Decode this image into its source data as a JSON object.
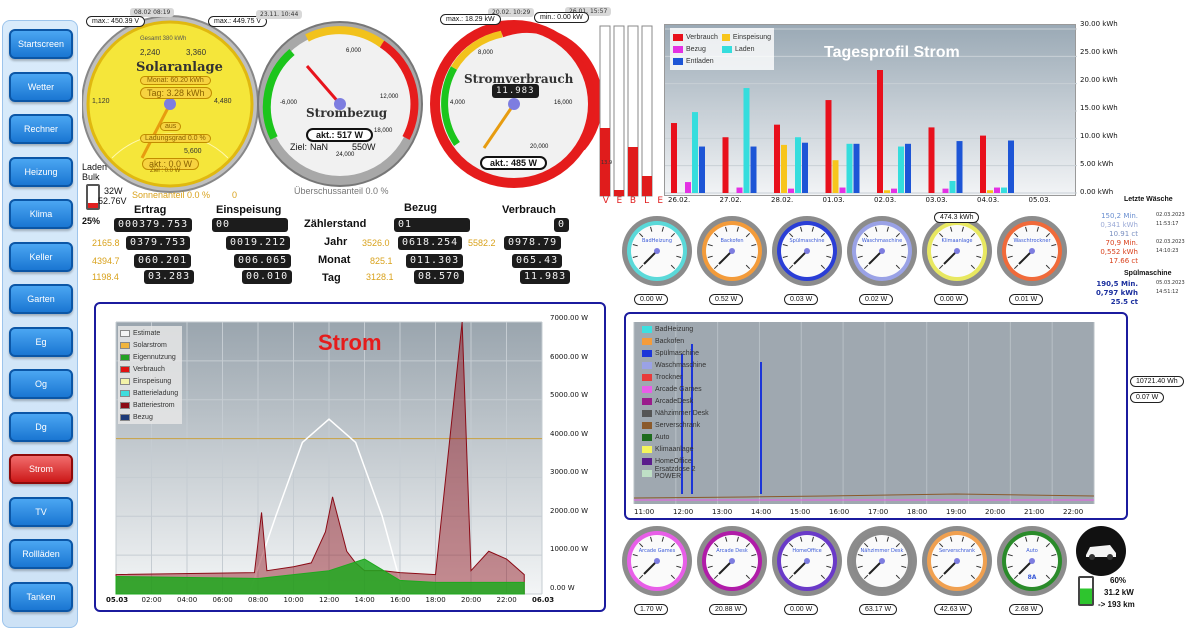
{
  "sidebar": {
    "items": [
      "Startscreen",
      "Wetter",
      "Rechner",
      "Heizung",
      "Klima",
      "Keller",
      "Garten",
      "Eg",
      "Og",
      "Dg",
      "Strom",
      "TV",
      "Rollläden",
      "Tanken"
    ],
    "active": "Strom"
  },
  "gauges": {
    "solar": {
      "title": "Solaranlage",
      "max_tag": "max.: 450.39 V",
      "max_tag2": "max.: 449.75 V",
      "date": "08.02 08:19",
      "gesamt": "Gesamt 380 kWh",
      "monat": "Monat: 60.20 kWh",
      "tag": "Tag: 3.28 kWh",
      "aus": "aus",
      "ladung": "Ladungsgrad 0.0 %",
      "akt": "akt.: 0.0 W",
      "ziel": "Ziel : 0.0 W",
      "ticks": [
        "2,240",
        "3,360",
        "1,120",
        "4,480",
        "5,600"
      ]
    },
    "bezug": {
      "title": "Strombezug",
      "date": "23.11. 10:44",
      "akt": "akt.: 517 W",
      "ziel_label": "Ziel:",
      "ziel_val": "NaN",
      "ziel_max": "550W",
      "ticks": [
        "6,000",
        "-6,000",
        "12,000",
        "18,000",
        "24,000"
      ]
    },
    "verbrauch": {
      "title": "Stromverbrauch",
      "date": "20.02. 10:29",
      "max_tag": "max.: 18.29 kW",
      "min_tag": "min.: 0.00 kW",
      "readout": "11.983",
      "akt": "akt.: 485 W",
      "ticks": [
        "8,000",
        "4,000",
        "16,000",
        "20,000"
      ]
    },
    "date4": "26.01. 15:57"
  },
  "battery": {
    "status": "Laden",
    "mode": "Bulk",
    "power": "32W",
    "voltage": "52.76V",
    "percent": "25%",
    "sonnenanteil": "Sonnenanteil 0.0 %",
    "sonnen_val": "0",
    "ueberschuss": "Überschussanteil 0.0 %"
  },
  "table": {
    "headers": {
      "ertrag": "Ertrag",
      "einspeisung": "Einspeisung",
      "zaehlerstand": "Zählerstand",
      "bezug": "Bezug",
      "verbrauch": "Verbrauch"
    },
    "rows": [
      {
        "label": "",
        "ertrag_side": "",
        "ertrag": "000379.753",
        "einsp": "00",
        "bezug": "01",
        "verb_side": "",
        "verb": "0"
      },
      {
        "label": "Jahr",
        "ertrag_side": "2165.8",
        "ertrag": "0379.753",
        "einsp": "0019.212",
        "bezug_side": "3526.0",
        "bezug": "0618.254",
        "verb_side": "5582.2",
        "verb": "0978.79"
      },
      {
        "label": "Monat",
        "ertrag_side": "4394.7",
        "ertrag": "060.201",
        "einsp": "006.065",
        "bezug_side": "825.1",
        "bezug": "011.303",
        "verb_side": "",
        "verb": "065.43"
      },
      {
        "label": "Tag",
        "ertrag_side": "1198.4",
        "ertrag": "03.283",
        "einsp": "00.010",
        "bezug_side": "3128.1",
        "bezug": "08.570",
        "verb_side": "",
        "verb": "11.983"
      }
    ]
  },
  "bars": {
    "letters": [
      "V",
      "E",
      "B",
      "L",
      "E"
    ]
  },
  "tagesprofil": {
    "title": "Tagesprofil Strom",
    "legend": [
      {
        "name": "Verbrauch",
        "color": "#e8101c"
      },
      {
        "name": "Einspeisung",
        "color": "#f7c51c"
      },
      {
        "name": "Bezug",
        "color": "#e331e3"
      },
      {
        "name": "Laden",
        "color": "#35dddd"
      },
      {
        "name": "Entladen",
        "color": "#1d55d6"
      }
    ],
    "y_ticks": [
      "30.00 kWh",
      "25.00 kWh",
      "20.00 kWh",
      "15.00 kWh",
      "10.00 kWh",
      "5.00 kWh",
      "0.00 kWh"
    ],
    "x_ticks": [
      "26.02.",
      "27.02.",
      "28.02.",
      "01.03.",
      "02.03.",
      "03.03.",
      "04.03.",
      "05.03."
    ]
  },
  "chart_data": [
    {
      "type": "bar",
      "title": "Tagesprofil Strom",
      "ylim": [
        0,
        30
      ],
      "categories": [
        "26.02.",
        "27.02.",
        "28.02.",
        "01.03.",
        "02.03.",
        "03.03.",
        "04.03.",
        "05.03."
      ],
      "series": [
        {
          "name": "Verbrauch",
          "values": [
            12.8,
            10.2,
            12.5,
            17.0,
            22.5,
            12.0,
            10.5,
            0
          ]
        },
        {
          "name": "Einspeisung",
          "values": [
            0,
            0,
            8.8,
            6.0,
            0.5,
            0,
            0.5,
            0
          ]
        },
        {
          "name": "Bezug",
          "values": [
            2.0,
            1.0,
            0.8,
            1.0,
            0.8,
            0.8,
            1.0,
            0
          ]
        },
        {
          "name": "Laden",
          "values": [
            14.8,
            19.2,
            10.2,
            9.0,
            8.5,
            2.2,
            1.0,
            0
          ]
        },
        {
          "name": "Entladen",
          "values": [
            8.5,
            8.5,
            9.2,
            9.0,
            9.0,
            9.5,
            9.6,
            0
          ]
        }
      ]
    },
    {
      "type": "area",
      "title": "Strom",
      "ylim": [
        0,
        7000
      ],
      "y_ticks": [
        "7000.00 W",
        "6000.00 W",
        "5000.00 W",
        "4000.00 W",
        "3000.00 W",
        "2000.00 W",
        "1000.00 W",
        "0.00 W"
      ],
      "x_ticks": [
        "05.03",
        "02:00",
        "04:00",
        "06:00",
        "08:00",
        "10:00",
        "12:00",
        "14:00",
        "16:00",
        "18:00",
        "20:00",
        "22:00",
        "06.03"
      ],
      "series": [
        {
          "name": "Estimate",
          "x": [
            7.5,
            9,
            10.5,
            12,
            13.5,
            15,
            16.2
          ],
          "values": [
            0,
            2000,
            3900,
            4500,
            3900,
            2000,
            0
          ]
        },
        {
          "name": "Verbrauch",
          "x": [
            0,
            7.8,
            8.2,
            8.5,
            10,
            11,
            11.8,
            12.2,
            13,
            13.5,
            14,
            15,
            16,
            18,
            19.5,
            20,
            21,
            22,
            23
          ],
          "values": [
            500,
            550,
            2100,
            600,
            700,
            800,
            1600,
            2500,
            1100,
            800,
            600,
            600,
            550,
            500,
            7000,
            600,
            1100,
            900,
            500
          ]
        },
        {
          "name": "Batteriestrom",
          "x": [
            0,
            8,
            12,
            14,
            16,
            18,
            20,
            22,
            23
          ],
          "values": [
            450,
            400,
            600,
            900,
            350,
            300,
            300,
            300,
            300
          ]
        }
      ]
    },
    {
      "type": "line",
      "series_names": [
        "BadHeizung",
        "Backofen",
        "Spülmaschine",
        "Waschmaschine",
        "Trockner",
        "Arcade Games",
        "ArcadeDesk",
        "Nähzimmer Desk",
        "Serverschrank",
        "Auto",
        "Klimaanlage",
        "HomeOffice",
        "Ersatzdose 2 POWER"
      ],
      "x_ticks": [
        "11:00",
        "12:00",
        "13:00",
        "14:00",
        "15:00",
        "16:00",
        "17:00",
        "18:00",
        "19:00",
        "20:00",
        "21:00",
        "22:00"
      ]
    }
  ],
  "strom_legend": [
    {
      "name": "Estimate",
      "color": "#f4f4f4"
    },
    {
      "name": "Solarstrom",
      "color": "#f0b43c"
    },
    {
      "name": "Eigennutzung",
      "color": "#24a124"
    },
    {
      "name": "Verbrauch",
      "color": "#e01010"
    },
    {
      "name": "Einspeisung",
      "color": "#f3f3a8"
    },
    {
      "name": "Batterieladung",
      "color": "#3ddddd"
    },
    {
      "name": "Batteriestrom",
      "color": "#8b0b16"
    },
    {
      "name": "Bezug",
      "color": "#1c3a78"
    }
  ],
  "device_legend": [
    {
      "name": "BadHeizung",
      "color": "#3de0e0"
    },
    {
      "name": "Backofen",
      "color": "#f59c3a"
    },
    {
      "name": "Spülmaschine",
      "color": "#1c35d8"
    },
    {
      "name": "Waschmaschine",
      "color": "#9aa2e6"
    },
    {
      "name": "Trockner",
      "color": "#e83a3a"
    },
    {
      "name": "Arcade Games",
      "color": "#e85ee8"
    },
    {
      "name": "ArcadeDesk",
      "color": "#9a1c8c"
    },
    {
      "name": "Nähzimmer Desk",
      "color": "#555555"
    },
    {
      "name": "Serverschrank",
      "color": "#8b5a2b"
    },
    {
      "name": "Auto",
      "color": "#1d6b1d"
    },
    {
      "name": "Klimaanlage",
      "color": "#f5f55c"
    },
    {
      "name": "HomeOffice",
      "color": "#5a1c8c"
    },
    {
      "name": "Ersatzdose 2 POWER",
      "color": "#bfe0c6"
    }
  ],
  "top_devices": [
    {
      "name": "BadHeizung",
      "value": "0.00 W",
      "ring": "#5ad9d9"
    },
    {
      "name": "Backofen",
      "value": "0.52 W",
      "ring": "#f39b3a"
    },
    {
      "name": "Spülmaschine",
      "value": "0.03 W",
      "ring": "#2a3ed6"
    },
    {
      "name": "Waschmaschine",
      "value": "0.02 W",
      "ring": "#9aa2e6"
    },
    {
      "name": "Klimaanlage",
      "value": "0.00 W",
      "ring": "#e8e860"
    },
    {
      "name": "Waschtrockner",
      "value": "0.01 W",
      "ring": "#f06a3a"
    }
  ],
  "top_device_extra": "474.3 kWh",
  "bottom_devices": [
    {
      "name": "Arcade Games",
      "value": "1.70 W",
      "ring": "#e85ee8"
    },
    {
      "name": "Arcade Desk",
      "value": "20.88 W",
      "ring": "#b01ca8"
    },
    {
      "name": "HomeOffice",
      "value": "0.00 W",
      "ring": "#6a3ac8"
    },
    {
      "name": "Nähzimmer Desk",
      "value": "63.17 W",
      "ring": "#8a8a8a"
    },
    {
      "name": "Serverschrank",
      "value": "42.63 W",
      "ring": "#f0a050"
    },
    {
      "name": "Auto",
      "value": "2.68 W",
      "ring": "#2a8b2a",
      "extra": "8A"
    }
  ],
  "dryer": {
    "title": "Letzte Wäsche",
    "rows": [
      {
        "a": "150,2 Min.",
        "b": "02.03.2023",
        "ca": "#6a8fd0"
      },
      {
        "a": "0,341 kWh",
        "b": "11:53:17",
        "ca": "#9aa9d6"
      },
      {
        "a": "10.91 ct",
        "b": "",
        "ca": "#7a8fc0"
      },
      {
        "a": "70,9 Min.",
        "b": "02.03.2023",
        "ca": "#d9411c"
      },
      {
        "a": "0,552 kWh",
        "b": "14:10:23",
        "ca": "#d9411c"
      },
      {
        "a": "17.66 ct",
        "b": "",
        "ca": "#d9411c"
      }
    ],
    "spuel_title": "Spülmaschine",
    "spuel_rows": [
      {
        "a": "190,5 Min.",
        "b": "05.03.2023"
      },
      {
        "a": "0,797 kWh",
        "b": "14:51:12"
      },
      {
        "a": "25.5 ct",
        "b": ""
      }
    ]
  },
  "right_pills": {
    "p1": "10721.40 Wh",
    "p2": "0.07 W"
  },
  "car": {
    "percent": "60%",
    "power": "31.2 kW",
    "range": "-> 193 km"
  }
}
